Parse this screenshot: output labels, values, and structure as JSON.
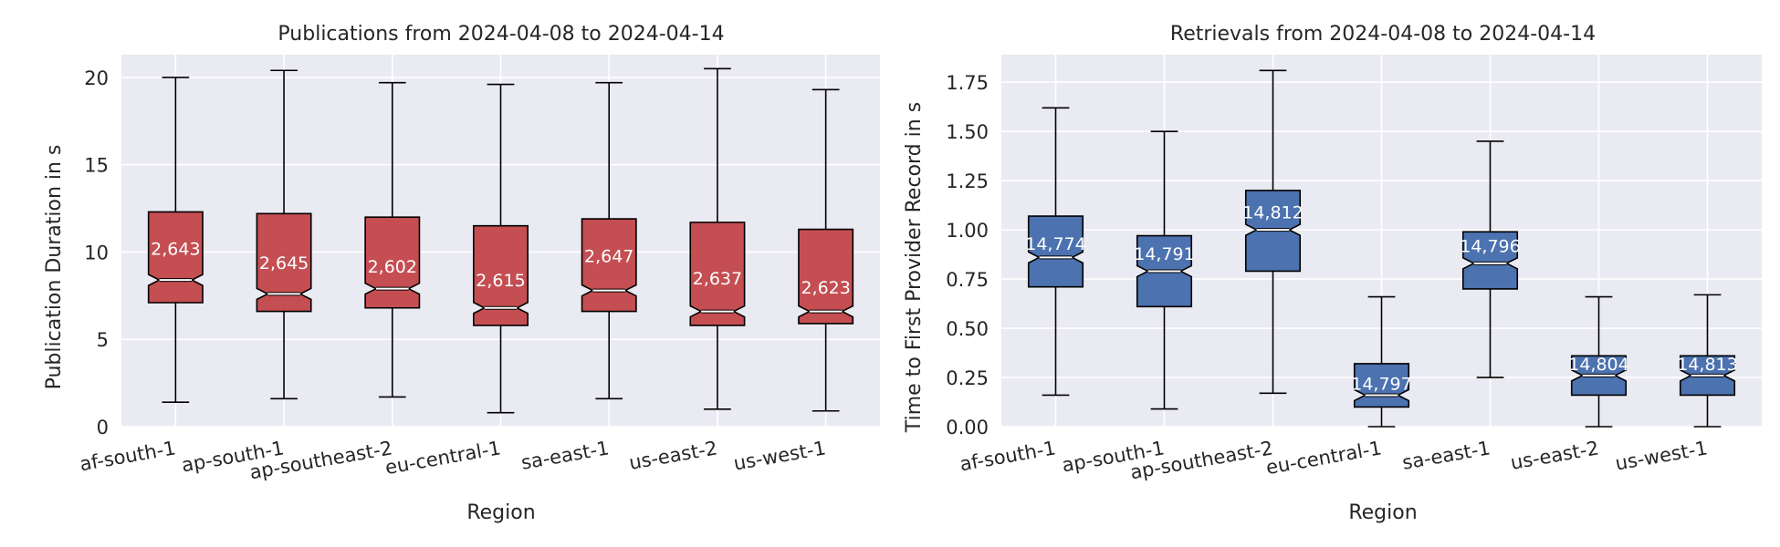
{
  "chart_data": [
    {
      "type": "boxplot",
      "title": "Publications from 2024-04-08 to 2024-04-14",
      "xlabel": "Region",
      "ylabel": "Publication Duration in s",
      "categories": [
        "af-south-1",
        "ap-south-1",
        "ap-southeast-2",
        "eu-central-1",
        "sa-east-1",
        "us-east-2",
        "us-west-1"
      ],
      "yticks": [
        {
          "value": 0,
          "label": "0"
        },
        {
          "value": 5,
          "label": "5"
        },
        {
          "value": 10,
          "label": "10"
        },
        {
          "value": 15,
          "label": "15"
        },
        {
          "value": 20,
          "label": "20"
        }
      ],
      "ylim": [
        0,
        21.3
      ],
      "box_color": "#c44e52",
      "notched": true,
      "boxes": [
        {
          "whisker_low": 1.4,
          "q1": 7.1,
          "median": 8.4,
          "q3": 12.3,
          "whisker_high": 20.0,
          "count_label": "2,643",
          "label_at": 10.2
        },
        {
          "whisker_low": 1.6,
          "q1": 6.6,
          "median": 7.6,
          "q3": 12.2,
          "whisker_high": 20.4,
          "count_label": "2,645",
          "label_at": 9.4
        },
        {
          "whisker_low": 1.7,
          "q1": 6.8,
          "median": 7.9,
          "q3": 12.0,
          "whisker_high": 19.7,
          "count_label": "2,602",
          "label_at": 9.2
        },
        {
          "whisker_low": 0.8,
          "q1": 5.8,
          "median": 6.8,
          "q3": 11.5,
          "whisker_high": 19.6,
          "count_label": "2,615",
          "label_at": 8.4
        },
        {
          "whisker_low": 1.6,
          "q1": 6.6,
          "median": 7.8,
          "q3": 11.9,
          "whisker_high": 19.7,
          "count_label": "2,647",
          "label_at": 9.8
        },
        {
          "whisker_low": 1.0,
          "q1": 5.8,
          "median": 6.6,
          "q3": 11.7,
          "whisker_high": 20.5,
          "count_label": "2,637",
          "label_at": 8.5
        },
        {
          "whisker_low": 0.9,
          "q1": 5.9,
          "median": 6.6,
          "q3": 11.3,
          "whisker_high": 19.3,
          "count_label": "2,623",
          "label_at": 8.0
        }
      ]
    },
    {
      "type": "boxplot",
      "title": "Retrievals from 2024-04-08 to 2024-04-14",
      "xlabel": "Region",
      "ylabel": "Time to First Provider Record in s",
      "categories": [
        "af-south-1",
        "ap-south-1",
        "ap-southeast-2",
        "eu-central-1",
        "sa-east-1",
        "us-east-2",
        "us-west-1"
      ],
      "yticks": [
        {
          "value": 0,
          "label": "0.00"
        },
        {
          "value": 0.25,
          "label": "0.25"
        },
        {
          "value": 0.5,
          "label": "0.50"
        },
        {
          "value": 0.75,
          "label": "0.75"
        },
        {
          "value": 1.0,
          "label": "1.00"
        },
        {
          "value": 1.25,
          "label": "1.25"
        },
        {
          "value": 1.5,
          "label": "1.50"
        },
        {
          "value": 1.75,
          "label": "1.75"
        }
      ],
      "ylim": [
        0,
        1.89
      ],
      "box_color": "#4c72b0",
      "notched": true,
      "boxes": [
        {
          "whisker_low": 0.16,
          "q1": 0.71,
          "median": 0.86,
          "q3": 1.07,
          "whisker_high": 1.62,
          "count_label": "14,774",
          "label_at": 0.93
        },
        {
          "whisker_low": 0.09,
          "q1": 0.61,
          "median": 0.79,
          "q3": 0.97,
          "whisker_high": 1.5,
          "count_label": "14,791",
          "label_at": 0.88
        },
        {
          "whisker_low": 0.17,
          "q1": 0.79,
          "median": 1.0,
          "q3": 1.2,
          "whisker_high": 1.81,
          "count_label": "14,812",
          "label_at": 1.09
        },
        {
          "whisker_low": 0.0,
          "q1": 0.1,
          "median": 0.16,
          "q3": 0.32,
          "whisker_high": 0.66,
          "count_label": "14,797",
          "label_at": 0.22
        },
        {
          "whisker_low": 0.25,
          "q1": 0.7,
          "median": 0.83,
          "q3": 0.99,
          "whisker_high": 1.45,
          "count_label": "14,796",
          "label_at": 0.92
        },
        {
          "whisker_low": 0.0,
          "q1": 0.16,
          "median": 0.26,
          "q3": 0.36,
          "whisker_high": 0.66,
          "count_label": "14,804",
          "label_at": 0.32
        },
        {
          "whisker_low": 0.0,
          "q1": 0.16,
          "median": 0.26,
          "q3": 0.36,
          "whisker_high": 0.67,
          "count_label": "14,813",
          "label_at": 0.32
        }
      ]
    }
  ]
}
